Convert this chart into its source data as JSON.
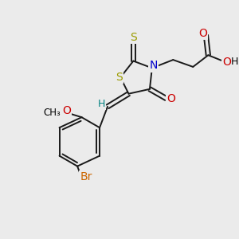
{
  "background_color": "#ebebeb",
  "atom_colors": {
    "C": "#000000",
    "S": "#9b9b00",
    "N": "#0000cc",
    "O": "#cc0000",
    "Br": "#cc6600",
    "H": "#008080"
  },
  "bond_color": "#1a1a1a",
  "figsize": [
    3.0,
    3.0
  ],
  "dpi": 100
}
